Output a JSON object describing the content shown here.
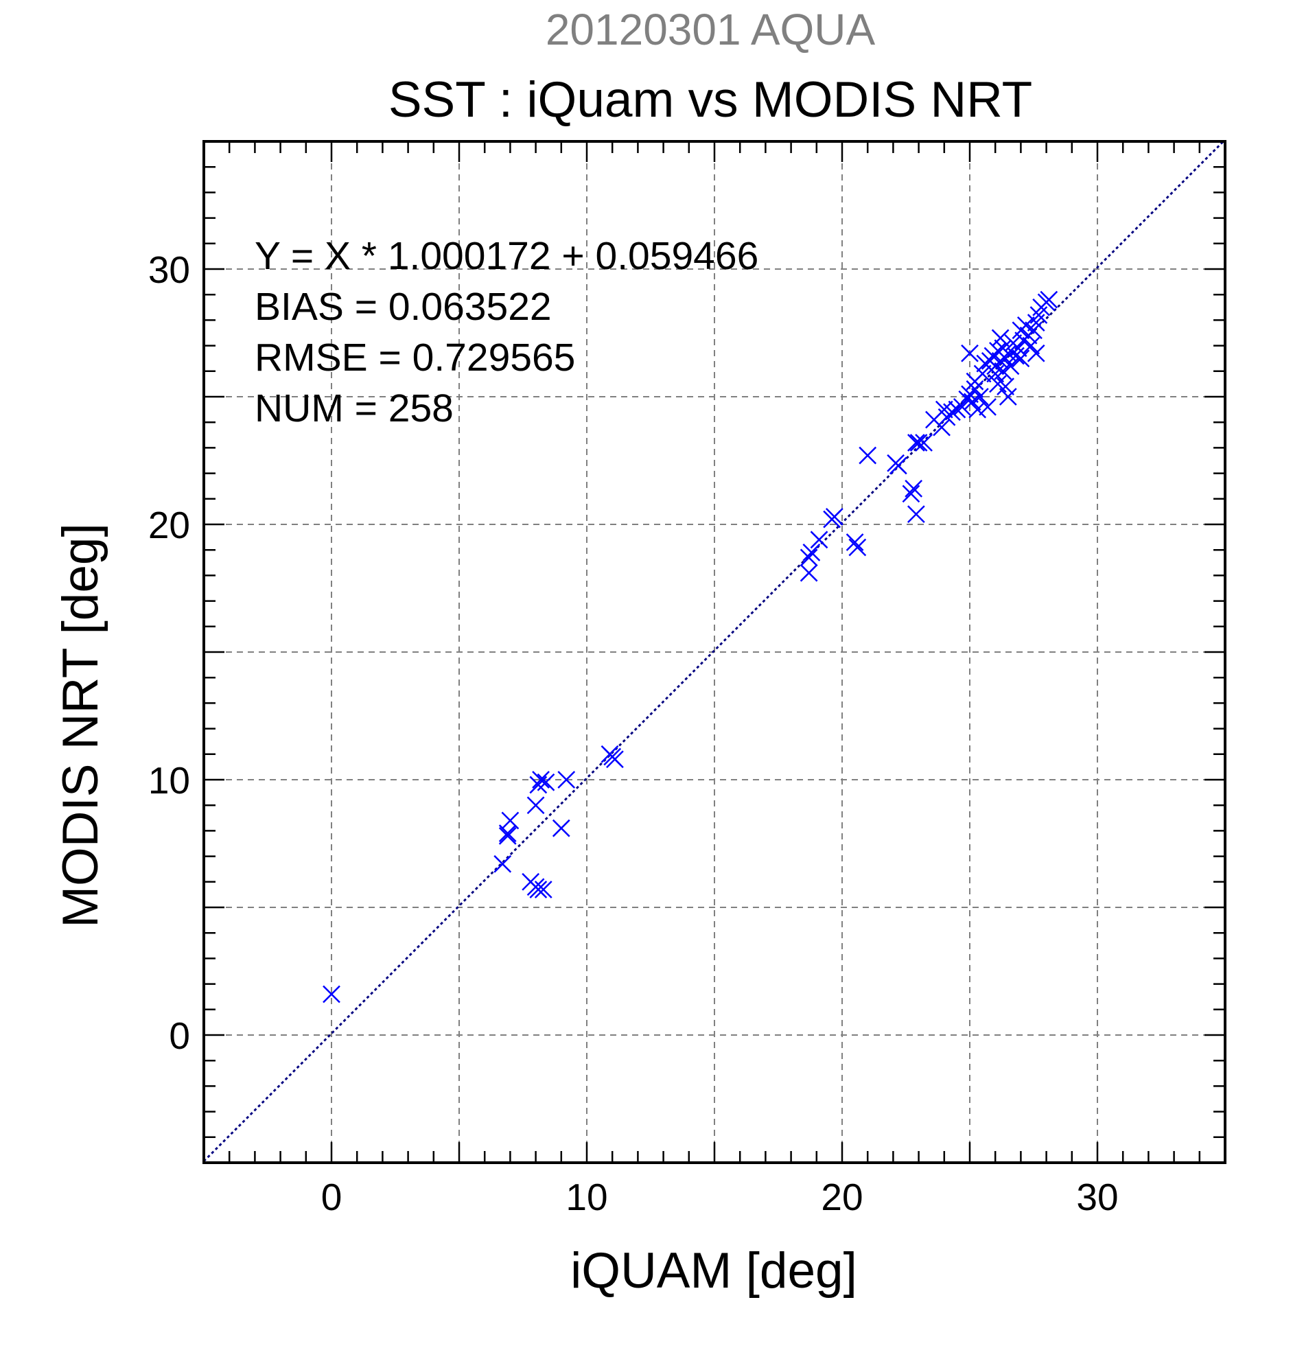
{
  "colors": {
    "marker": "#0000ff",
    "fit_line": "#000080",
    "grid": "#808080",
    "axes": "#000000",
    "top_title": "#808080"
  },
  "chart_data": {
    "type": "scatter",
    "top_title": "20120301 AQUA",
    "title": "SST : iQuam vs MODIS NRT",
    "xlabel": "iQUAM [deg]",
    "ylabel": "MODIS NRT [deg]",
    "xlim": [
      -5,
      35
    ],
    "ylim": [
      -5,
      35
    ],
    "xticks": [
      "0",
      "10",
      "20",
      "30"
    ],
    "yticks": [
      "0",
      "10",
      "20",
      "30"
    ],
    "grid": true,
    "grid_step": 5,
    "marker": "x",
    "annotations": [
      "Y = X * 1.000172 + 0.059466",
      "BIAS = 0.063522",
      "RMSE = 0.729565",
      "NUM = 258"
    ],
    "fit_line": {
      "slope": 1.000172,
      "intercept": 0.059466
    },
    "points": [
      [
        0,
        1.6
      ],
      [
        6.7,
        6.7
      ],
      [
        6.9,
        7.8
      ],
      [
        6.9,
        7.9
      ],
      [
        7.0,
        8.4
      ],
      [
        7.8,
        6.0
      ],
      [
        8.0,
        5.8
      ],
      [
        8.1,
        5.7
      ],
      [
        8.3,
        5.7
      ],
      [
        8.0,
        9.0
      ],
      [
        8.1,
        9.8
      ],
      [
        8.2,
        10.0
      ],
      [
        8.4,
        9.9
      ],
      [
        9.2,
        10.0
      ],
      [
        9.0,
        8.1
      ],
      [
        10.9,
        11.0
      ],
      [
        11.0,
        10.9
      ],
      [
        11.1,
        10.8
      ],
      [
        18.7,
        18.1
      ],
      [
        18.7,
        18.7
      ],
      [
        18.8,
        18.9
      ],
      [
        19.1,
        19.4
      ],
      [
        19.6,
        20.2
      ],
      [
        19.7,
        20.3
      ],
      [
        20.5,
        19.3
      ],
      [
        20.6,
        19.1
      ],
      [
        21.0,
        22.7
      ],
      [
        22.1,
        22.4
      ],
      [
        22.2,
        22.3
      ],
      [
        22.7,
        21.2
      ],
      [
        22.8,
        21.4
      ],
      [
        22.9,
        20.4
      ],
      [
        22.9,
        23.2
      ],
      [
        23.0,
        23.2
      ],
      [
        23.2,
        23.2
      ],
      [
        23.6,
        24.1
      ],
      [
        23.9,
        23.8
      ],
      [
        24.0,
        24.5
      ],
      [
        24.1,
        24.2
      ],
      [
        24.3,
        24.4
      ],
      [
        24.5,
        24.5
      ],
      [
        24.7,
        24.6
      ],
      [
        24.9,
        24.9
      ],
      [
        25.0,
        25.1
      ],
      [
        25.0,
        26.7
      ],
      [
        25.1,
        24.8
      ],
      [
        25.2,
        25.3
      ],
      [
        25.2,
        25.6
      ],
      [
        25.3,
        24.5
      ],
      [
        25.4,
        25.0
      ],
      [
        25.5,
        25.9
      ],
      [
        25.6,
        26.3
      ],
      [
        25.7,
        24.6
      ],
      [
        25.8,
        26.4
      ],
      [
        25.9,
        26.6
      ],
      [
        26.0,
        25.9
      ],
      [
        26.0,
        26.2
      ],
      [
        26.1,
        26.8
      ],
      [
        26.1,
        25.5
      ],
      [
        26.2,
        26.4
      ],
      [
        26.3,
        26.0
      ],
      [
        26.3,
        26.9
      ],
      [
        26.4,
        25.4
      ],
      [
        26.4,
        26.5
      ],
      [
        26.5,
        25.0
      ],
      [
        26.5,
        26.7
      ],
      [
        26.6,
        26.2
      ],
      [
        26.7,
        27.1
      ],
      [
        26.8,
        26.6
      ],
      [
        26.9,
        26.9
      ],
      [
        27.0,
        27.6
      ],
      [
        27.0,
        26.5
      ],
      [
        27.1,
        27.2
      ],
      [
        27.2,
        27.8
      ],
      [
        27.3,
        27.4
      ],
      [
        27.4,
        27.0
      ],
      [
        27.5,
        27.6
      ],
      [
        27.6,
        26.7
      ],
      [
        27.7,
        28.2
      ],
      [
        27.8,
        28.5
      ],
      [
        28.0,
        28.7
      ],
      [
        28.1,
        28.8
      ],
      [
        27.6,
        27.9
      ],
      [
        26.2,
        27.3
      ]
    ]
  }
}
